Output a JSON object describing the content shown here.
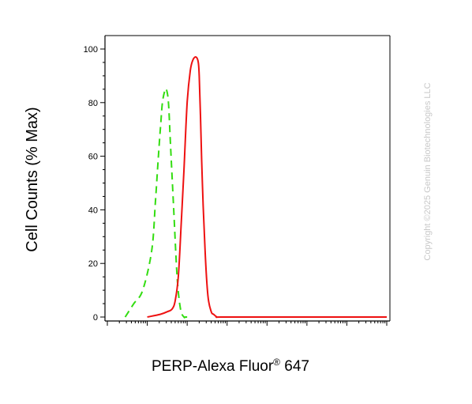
{
  "chart_data": {
    "type": "line",
    "title": "",
    "xlabel": "PERP-Alexa Fluor",
    "xlabel_superscript": "®",
    "xlabel_suffix": " 647",
    "ylabel": "Cell Counts (% Max)",
    "x_scale": "log",
    "xlim": [
      1,
      10000000
    ],
    "ylim": [
      0,
      100
    ],
    "yticks": [
      0,
      20,
      40,
      60,
      80,
      100
    ],
    "grid": false,
    "legend": "none",
    "series": [
      {
        "style": "dashed",
        "color": "#33dd11",
        "x": [
          2.8,
          4.6,
          7.7,
          13,
          16,
          19,
          22,
          24,
          27,
          30,
          34,
          38,
          46,
          56,
          68,
          83,
          90,
          110
        ],
        "y": [
          0,
          5,
          10,
          25,
          43,
          60,
          73,
          80,
          84,
          85,
          80,
          65,
          40,
          15,
          3,
          0,
          0,
          0
        ]
      },
      {
        "style": "solid",
        "color": "#ee1111",
        "x": [
          10,
          21,
          32,
          42,
          50,
          60,
          71,
          83,
          100,
          120,
          140,
          167,
          190,
          200,
          215,
          240,
          280,
          330,
          400,
          460,
          560,
          700,
          10000,
          1000000,
          10000000
        ],
        "y": [
          0,
          1,
          2,
          3,
          6,
          15,
          35,
          55,
          80,
          92,
          96,
          97,
          95,
          90,
          75,
          50,
          25,
          8,
          2,
          1,
          0,
          0,
          0,
          0,
          0
        ]
      }
    ],
    "colors": {
      "negative_control": "#33dd11",
      "sample": "#ee1111",
      "axis": "#000000",
      "copyright": "#c8c8c8"
    }
  },
  "copyright": "Copyright ©2025 Genuin Biotechnologies LLC"
}
